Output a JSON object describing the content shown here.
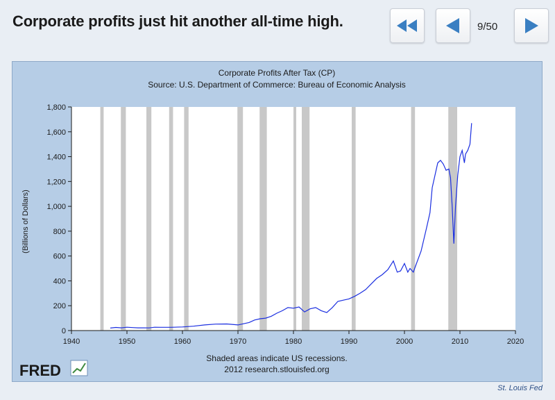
{
  "header": {
    "title": "Corporate profits just hit another all-time high.",
    "counter": "9/50",
    "first_icon": "double-chevron-left-icon",
    "prev_icon": "triangle-left-icon",
    "next_icon": "triangle-right-icon",
    "icon_color": "#3a7fc2"
  },
  "footer": {
    "credit": "St. Louis Fed"
  },
  "chart_data": {
    "type": "line",
    "title": "Corporate Profits After Tax (CP)",
    "subtitle": "Source: U.S. Department of Commerce: Bureau of Economic Analysis",
    "xlabel": "",
    "ylabel": "(Billions of Dollars)",
    "xlim": [
      1940,
      2020
    ],
    "ylim": [
      0,
      1800
    ],
    "x_ticks": [
      1940,
      1950,
      1960,
      1970,
      1980,
      1990,
      2000,
      2010,
      2020
    ],
    "y_ticks": [
      0,
      200,
      400,
      600,
      800,
      1000,
      1200,
      1400,
      1600,
      1800
    ],
    "x_tick_labels": [
      "1940",
      "1950",
      "1960",
      "1970",
      "1980",
      "1990",
      "2000",
      "2010",
      "2020"
    ],
    "y_tick_labels": [
      "0",
      "200",
      "400",
      "600",
      "800",
      "1,000",
      "1,200",
      "1,400",
      "1,600",
      "1,800"
    ],
    "line_color": "#1a2ee0",
    "recessions": [
      [
        1945.2,
        1945.8
      ],
      [
        1948.9,
        1949.8
      ],
      [
        1953.5,
        1954.4
      ],
      [
        1957.6,
        1958.3
      ],
      [
        1960.3,
        1961.1
      ],
      [
        1969.9,
        1970.9
      ],
      [
        1973.9,
        1975.2
      ],
      [
        1980.0,
        1980.5
      ],
      [
        1981.5,
        1982.9
      ],
      [
        1990.5,
        1991.2
      ],
      [
        2001.2,
        2001.9
      ],
      [
        2007.9,
        2009.5
      ]
    ],
    "series": [
      {
        "name": "Corporate Profits After Tax (CP)",
        "x": [
          1947,
          1948,
          1949,
          1950,
          1951,
          1952,
          1953,
          1954,
          1955,
          1956,
          1958,
          1960,
          1962,
          1964,
          1966,
          1968,
          1970,
          1972,
          1973,
          1974,
          1975,
          1976,
          1977,
          1978,
          1979,
          1980,
          1981,
          1982,
          1983,
          1984,
          1985,
          1986,
          1987,
          1988,
          1989,
          1990,
          1991,
          1992,
          1993,
          1994,
          1995,
          1996,
          1997,
          1998,
          1998.7,
          1999.3,
          2000,
          2000.6,
          2001,
          2001.6,
          2002,
          2003,
          2004,
          2004.6,
          2005,
          2005.5,
          2006,
          2006.5,
          2007,
          2007.5,
          2008,
          2008.3,
          2008.6,
          2008.9,
          2009.2,
          2009.6,
          2010,
          2010.4,
          2010.8,
          2011,
          2011.4,
          2011.8,
          2012.1
        ],
        "values": [
          20,
          25,
          22,
          27,
          24,
          22,
          22,
          21,
          27,
          26,
          26,
          29,
          35,
          45,
          52,
          53,
          45,
          65,
          85,
          95,
          100,
          115,
          140,
          160,
          185,
          180,
          190,
          150,
          175,
          185,
          160,
          145,
          185,
          235,
          245,
          255,
          275,
          300,
          330,
          375,
          420,
          450,
          490,
          560,
          470,
          480,
          540,
          470,
          500,
          470,
          520,
          640,
          830,
          950,
          1150,
          1250,
          1350,
          1370,
          1340,
          1290,
          1300,
          1230,
          1000,
          700,
          1000,
          1250,
          1400,
          1450,
          1350,
          1420,
          1450,
          1500,
          1670
        ]
      }
    ],
    "notes": [
      "Shaded areas indicate US recessions.",
      "2012 research.stlouisfed.org"
    ],
    "logo_text": "FRED"
  }
}
